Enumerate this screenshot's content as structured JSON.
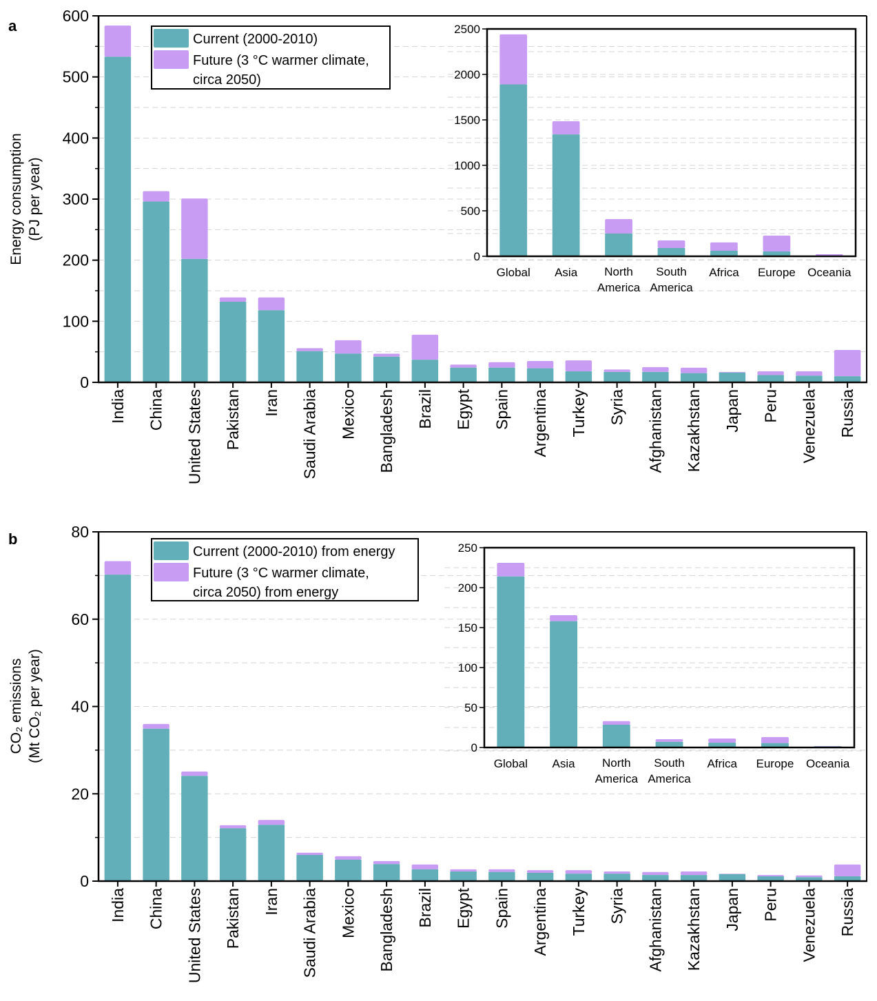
{
  "colors": {
    "current": "#62afb9",
    "future": "#c89cf2",
    "axis": "#000000",
    "grid": "#d4d4d4"
  },
  "chart_data": [
    {
      "panel": "a",
      "type": "bar",
      "stacked": true,
      "title": "",
      "panel_letter": "a",
      "xlabel": "",
      "ylabel_lines": [
        "Energy consumption",
        "(PJ per year)"
      ],
      "ylim": [
        0,
        600
      ],
      "yticks": [
        0,
        100,
        200,
        300,
        400,
        500,
        600
      ],
      "minor_step": 50,
      "grid": true,
      "legend": {
        "placement": "top-left",
        "entries": [
          {
            "key": "current",
            "lines": [
              "Current (2000-2010)"
            ]
          },
          {
            "key": "future",
            "lines": [
              "Future (3 °C warmer climate,",
              " circa 2050)"
            ]
          }
        ]
      },
      "categories": [
        "India",
        "China",
        "United States",
        "Pakistan",
        "Iran",
        "Saudi Arabia",
        "Mexico",
        "Bangladesh",
        "Brazil",
        "Egypt",
        "Spain",
        "Argentina",
        "Turkey",
        "Syria",
        "Afghanistan",
        "Kazakhstan",
        "Japan",
        "Peru",
        "Venezuela",
        "Russia"
      ],
      "series": [
        {
          "name": "Current (2000-2010)",
          "key": "current",
          "values": [
            533,
            296,
            202,
            132,
            118,
            51,
            47,
            42,
            37,
            24,
            24,
            23,
            18,
            17,
            17,
            15,
            16,
            12,
            11,
            10
          ]
        },
        {
          "name": "Future (3 °C warmer climate, circa 2050)",
          "key": "future",
          "total_values": [
            584,
            313,
            301,
            139,
            139,
            56,
            69,
            47,
            78,
            29,
            33,
            35,
            36,
            21,
            25,
            24,
            17,
            18,
            18,
            53
          ]
        }
      ],
      "inset": {
        "type": "bar",
        "stacked": true,
        "placement": "top-right",
        "ylim": [
          0,
          2500
        ],
        "yticks": [
          0,
          500,
          1000,
          1500,
          2000,
          2500
        ],
        "minor_step": 250,
        "categories": [
          [
            "Global"
          ],
          [
            "Asia"
          ],
          [
            "North",
            "America"
          ],
          [
            "South",
            "America"
          ],
          [
            "Africa"
          ],
          [
            "Europe"
          ],
          [
            "Oceania"
          ]
        ],
        "series": [
          {
            "name": "Current (2000-2010)",
            "key": "current",
            "values": [
              1890,
              1340,
              250,
              91,
              61,
              53,
              5
            ]
          },
          {
            "name": "Future (3 °C warmer climate, circa 2050)",
            "key": "future",
            "total_values": [
              2440,
              1485,
              409,
              174,
              152,
              227,
              23
            ]
          }
        ]
      }
    },
    {
      "panel": "b",
      "type": "bar",
      "stacked": true,
      "title": "",
      "panel_letter": "b",
      "xlabel": "",
      "ylabel_lines": [
        "CO₂ emissions",
        "(Mt CO₂ per year)"
      ],
      "ylim": [
        0,
        80
      ],
      "yticks": [
        0,
        20,
        40,
        60,
        80
      ],
      "minor_step": 10,
      "grid": true,
      "legend": {
        "placement": "top-left",
        "entries": [
          {
            "key": "current",
            "lines": [
              "Current (2000-2010) from energy"
            ]
          },
          {
            "key": "future",
            "lines": [
              "Future (3 °C warmer climate,",
              " circa 2050) from energy"
            ]
          }
        ]
      },
      "categories": [
        "India",
        "China",
        "United States",
        "Pakistan",
        "Iran",
        "Saudi Arabia",
        "Mexico",
        "Bangladesh",
        "Brazil",
        "Egypt",
        "Spain",
        "Argentina",
        "Turkey",
        "Syria",
        "Afghanistan",
        "Kazakhstan",
        "Japan",
        "Peru",
        "Venezuela",
        "Russia"
      ],
      "series": [
        {
          "name": "Current (2000-2010) from energy",
          "key": "current",
          "values": [
            70.2,
            34.9,
            24.1,
            12.1,
            12.9,
            6.0,
            4.9,
            3.9,
            2.7,
            2.2,
            2.1,
            1.9,
            1.7,
            1.7,
            1.4,
            1.4,
            1.6,
            1.1,
            0.9,
            1.1
          ]
        },
        {
          "name": "Future (3 °C warmer climate, circa 2050) from energy",
          "key": "future",
          "total_values": [
            73.3,
            36.0,
            25.1,
            12.8,
            14.0,
            6.5,
            5.7,
            4.6,
            3.8,
            2.7,
            2.7,
            2.5,
            2.5,
            2.2,
            2.1,
            2.2,
            1.7,
            1.4,
            1.3,
            3.8
          ]
        }
      ],
      "inset": {
        "type": "bar",
        "stacked": true,
        "placement": "top-right",
        "ylim": [
          0,
          250
        ],
        "yticks": [
          0,
          50,
          100,
          150,
          200,
          250
        ],
        "minor_step": 25,
        "categories": [
          [
            "Global"
          ],
          [
            "Asia"
          ],
          [
            "North",
            "America"
          ],
          [
            "South",
            "America"
          ],
          [
            "Africa"
          ],
          [
            "Europe"
          ],
          [
            "Oceania"
          ]
        ],
        "series": [
          {
            "name": "Current (2000-2010) from energy",
            "key": "current",
            "values": [
              214,
              158,
              28.5,
              7,
              6,
              5.5,
              1.4
            ]
          },
          {
            "name": "Future (3 °C warmer climate, circa 2050) from energy",
            "key": "future",
            "total_values": [
              231,
              165.5,
              33,
              10.3,
              11.2,
              13,
              1.7
            ]
          }
        ]
      }
    }
  ]
}
